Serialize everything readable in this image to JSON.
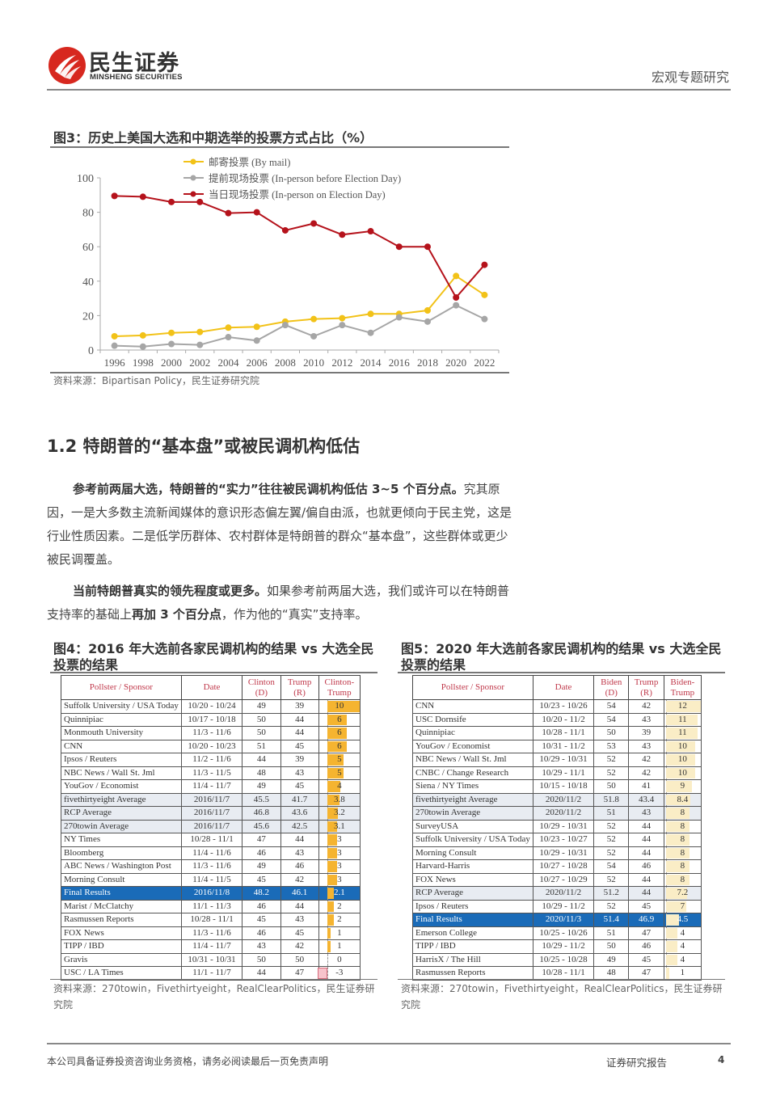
{
  "header": {
    "logo_cn": "民生证券",
    "logo_en": "MINSHENG SECURITIES",
    "category": "宏观专题研究"
  },
  "figure3": {
    "title": "图3：历史上美国大选和中期选举的投票方式占比（%）",
    "source": "资料来源：Bipartisan Policy，民生证券研究院"
  },
  "chart_data": {
    "type": "line",
    "title": "图3：历史上美国大选和中期选举的投票方式占比（%）",
    "xlabel": "",
    "ylabel": "",
    "ylim": [
      0,
      100
    ],
    "yticks": [
      0,
      20,
      40,
      60,
      80,
      100
    ],
    "x": [
      "1996",
      "1998",
      "2000",
      "2002",
      "2004",
      "2006",
      "2008",
      "2010",
      "2012",
      "2014",
      "2016",
      "2018",
      "2020",
      "2022"
    ],
    "legend_position": "top",
    "grid": false,
    "series": [
      {
        "name": "邮寄投票 (By mail)",
        "color": "#f2c218",
        "values": [
          8,
          8.5,
          10,
          10.5,
          13,
          13.5,
          16.5,
          18,
          18.5,
          21,
          21,
          23,
          43,
          32
        ]
      },
      {
        "name": "提前现场投票 (In-person before Election Day)",
        "color": "#a6a6a6",
        "values": [
          2.5,
          2,
          3.5,
          3,
          7.5,
          5.5,
          14.5,
          8,
          14.5,
          10,
          19,
          16.5,
          26,
          18
        ]
      },
      {
        "name": "当日现场投票 (In-person on Election Day)",
        "color": "#b5121b",
        "values": [
          89.5,
          89,
          86,
          86,
          79.5,
          80,
          69.5,
          73.5,
          67,
          69,
          60,
          60,
          30.5,
          49.5
        ]
      }
    ]
  },
  "section": {
    "title": "1.2 特朗普的“基本盘”或被民调机构低估",
    "para1_bold": "参考前两届大选，特朗普的“实力”往往被民调机构低估 3~5 个百分点。",
    "para1_rest": "究其原因，一是大多数主流新闻媒体的意识形态偏左翼/偏自由派，也就更倾向于民主党，这是行业性质因素。二是低学历群体、农村群体是特朗普的群众“基本盘”，这些群体或更少被民调覆盖。",
    "para2_bold": "当前特朗普真实的领先程度或更多。",
    "para2_mid": "如果参考前两届大选，我们或许可以在特朗普支持率的基础上",
    "para2_bold2": "再加 3 个百分点",
    "para2_end": "，作为他的“真实”支持率。"
  },
  "figure4": {
    "title": "图4：2016 年大选前各家民调机构的结果 vs 大选全民投票的结果",
    "source": "资料来源：270towin，Fivethirtyeight，RealClearPolitics，民生证券研究院",
    "headers": [
      "Pollster / Sponsor",
      "Date",
      "Clinton (D)",
      "Trump (R)",
      "Clinton-Trump"
    ],
    "rows": [
      [
        "Suffolk University / USA Today",
        "10/20 - 10/24",
        "49",
        "39",
        "10"
      ],
      [
        "Quinnipiac",
        "10/17 - 10/18",
        "50",
        "44",
        "6"
      ],
      [
        "Monmouth University",
        "11/3 - 11/6",
        "50",
        "44",
        "6"
      ],
      [
        "CNN",
        "10/20 - 10/23",
        "51",
        "45",
        "6"
      ],
      [
        "Ipsos / Reuters",
        "11/2 - 11/6",
        "44",
        "39",
        "5"
      ],
      [
        "NBC News / Wall St. Jml",
        "11/3 - 11/5",
        "48",
        "43",
        "5"
      ],
      [
        "YouGov / Economist",
        "11/4 - 11/7",
        "49",
        "45",
        "4"
      ],
      [
        "fivethirtyeight Average",
        "2016/11/7",
        "45.5",
        "41.7",
        "3.8"
      ],
      [
        "RCP Average",
        "2016/11/7",
        "46.8",
        "43.6",
        "3.2"
      ],
      [
        "270towin Average",
        "2016/11/7",
        "45.6",
        "42.5",
        "3.1"
      ],
      [
        "NY Times",
        "10/28 - 11/1",
        "47",
        "44",
        "3"
      ],
      [
        "Bloomberg",
        "11/4 - 11/6",
        "46",
        "43",
        "3"
      ],
      [
        "ABC News / Washington Post",
        "11/3 - 11/6",
        "49",
        "46",
        "3"
      ],
      [
        "Morning Consult",
        "11/4 - 11/5",
        "45",
        "42",
        "3"
      ],
      [
        "Final Results",
        "2016/11/8",
        "48.2",
        "46.1",
        "2.1"
      ],
      [
        "Marist / McClatchy",
        "11/1 - 11/3",
        "46",
        "44",
        "2"
      ],
      [
        "Rasmussen Reports",
        "10/28 - 11/1",
        "45",
        "43",
        "2"
      ],
      [
        "FOX News",
        "11/3 - 11/6",
        "46",
        "45",
        "1"
      ],
      [
        "TIPP / IBD",
        "11/4 - 11/7",
        "43",
        "42",
        "1"
      ],
      [
        "Gravis",
        "10/31 - 10/31",
        "50",
        "50",
        "0"
      ],
      [
        "USC / LA Times",
        "11/1 - 11/7",
        "44",
        "47",
        "-3"
      ]
    ]
  },
  "figure5": {
    "title": "图5：2020 年大选前各家民调机构的结果 vs 大选全民投票的结果",
    "source": "资料来源：270towin，Fivethirtyeight，RealClearPolitics，民生证券研究院",
    "headers": [
      "Pollster / Sponsor",
      "Date",
      "Biden (D)",
      "Trump (R)",
      "Biden-Trump"
    ],
    "rows": [
      [
        "CNN",
        "10/23 - 10/26",
        "54",
        "42",
        "12"
      ],
      [
        "USC Dornsife",
        "10/20 - 11/2",
        "54",
        "43",
        "11"
      ],
      [
        "Quinnipiac",
        "10/28 - 11/1",
        "50",
        "39",
        "11"
      ],
      [
        "YouGov / Economist",
        "10/31 - 11/2",
        "53",
        "43",
        "10"
      ],
      [
        "NBC News / Wall St. Jml",
        "10/29 - 10/31",
        "52",
        "42",
        "10"
      ],
      [
        "CNBC / Change Research",
        "10/29 - 11/1",
        "52",
        "42",
        "10"
      ],
      [
        "Siena / NY Times",
        "10/15 - 10/18",
        "50",
        "41",
        "9"
      ],
      [
        "fivethirtyeight Average",
        "2020/11/2",
        "51.8",
        "43.4",
        "8.4"
      ],
      [
        "270towin Average",
        "2020/11/2",
        "51",
        "43",
        "8"
      ],
      [
        "SurveyUSA",
        "10/29 - 10/31",
        "52",
        "44",
        "8"
      ],
      [
        "Suffolk University / USA Today",
        "10/23 - 10/27",
        "52",
        "44",
        "8"
      ],
      [
        "Morning Consult",
        "10/29 - 10/31",
        "52",
        "44",
        "8"
      ],
      [
        "Harvard-Harris",
        "10/27 - 10/28",
        "54",
        "46",
        "8"
      ],
      [
        "FOX News",
        "10/27 - 10/29",
        "52",
        "44",
        "8"
      ],
      [
        "RCP Average",
        "2020/11/2",
        "51.2",
        "44",
        "7.2"
      ],
      [
        "Ipsos / Reuters",
        "10/29 - 11/2",
        "52",
        "45",
        "7"
      ],
      [
        "Final Results",
        "2020/11/3",
        "51.4",
        "46.9",
        "4.5"
      ],
      [
        "Emerson College",
        "10/25 - 10/26",
        "51",
        "47",
        "4"
      ],
      [
        "TIPP / IBD",
        "10/29 - 11/2",
        "50",
        "46",
        "4"
      ],
      [
        "HarrisX / The Hill",
        "10/25 - 10/28",
        "49",
        "45",
        "4"
      ],
      [
        "Rasmussen Reports",
        "10/28 - 11/1",
        "48",
        "47",
        "1"
      ]
    ]
  },
  "footer": {
    "disclaimer": "本公司具备证券投资咨询业务资格，请务必阅读最后一页免责声明",
    "report_type": "证券研究报告",
    "page": "4"
  },
  "colors": {
    "brand_red": "#d7281f",
    "final_row_blue": "#1a6bb8",
    "bar_orange": "#f5b430",
    "header_red": "#c0394b"
  }
}
